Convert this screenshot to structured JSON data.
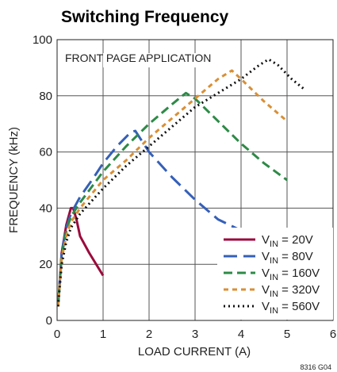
{
  "chart_data": {
    "type": "line",
    "title": "Switching Frequency",
    "xlabel": "LOAD CURRENT (A)",
    "ylabel": "FREQUENCY (kHz)",
    "annotation": "FRONT PAGE APPLICATION",
    "figure_id": "8316 G04",
    "xlim": [
      0,
      6
    ],
    "ylim": [
      0,
      100
    ],
    "xticks": [
      0,
      1,
      2,
      3,
      4,
      5,
      6
    ],
    "yticks": [
      0,
      20,
      40,
      60,
      80,
      100
    ],
    "grid": true,
    "legend_position": "bottom-right",
    "series": [
      {
        "name": "VIN = 20V",
        "label_main": "V",
        "label_sub": "IN",
        "label_value": " = 20V",
        "color": "#9b0a3c",
        "dash": "solid",
        "points": [
          [
            0.02,
            5
          ],
          [
            0.1,
            24
          ],
          [
            0.2,
            34
          ],
          [
            0.3,
            40
          ],
          [
            0.35,
            40
          ],
          [
            0.42,
            36
          ],
          [
            0.5,
            30
          ],
          [
            0.7,
            24
          ],
          [
            1.0,
            16
          ]
        ]
      },
      {
        "name": "VIN = 80V",
        "label_main": "V",
        "label_sub": "IN",
        "label_value": " = 80V",
        "color": "#3560b8",
        "dash": "long",
        "points": [
          [
            0.02,
            5
          ],
          [
            0.1,
            24
          ],
          [
            0.2,
            33
          ],
          [
            0.3,
            38
          ],
          [
            0.5,
            44
          ],
          [
            0.8,
            51
          ],
          [
            1.0,
            56
          ],
          [
            1.3,
            62
          ],
          [
            1.6,
            67
          ],
          [
            1.7,
            67.5
          ],
          [
            2.0,
            60
          ],
          [
            2.5,
            51
          ],
          [
            3.0,
            43
          ],
          [
            3.5,
            36
          ],
          [
            4.0,
            32
          ],
          [
            4.5,
            29
          ]
        ]
      },
      {
        "name": "VIN = 160V",
        "label_main": "V",
        "label_sub": "IN",
        "label_value": " = 160V",
        "color": "#2e8a47",
        "dash": "medium",
        "points": [
          [
            0.02,
            5
          ],
          [
            0.1,
            23
          ],
          [
            0.2,
            32
          ],
          [
            0.3,
            37
          ],
          [
            0.5,
            42
          ],
          [
            1.0,
            53
          ],
          [
            1.5,
            62
          ],
          [
            2.0,
            70
          ],
          [
            2.5,
            77
          ],
          [
            2.8,
            81
          ],
          [
            3.0,
            79
          ],
          [
            3.5,
            71
          ],
          [
            4.0,
            63
          ],
          [
            4.5,
            56
          ],
          [
            5.0,
            50
          ]
        ]
      },
      {
        "name": "VIN = 320V",
        "label_main": "V",
        "label_sub": "IN",
        "label_value": " = 320V",
        "color": "#d98f35",
        "dash": "short",
        "points": [
          [
            0.02,
            5
          ],
          [
            0.1,
            22
          ],
          [
            0.2,
            30
          ],
          [
            0.3,
            35
          ],
          [
            0.5,
            40
          ],
          [
            1.0,
            50
          ],
          [
            1.5,
            57
          ],
          [
            2.0,
            65
          ],
          [
            2.5,
            72
          ],
          [
            3.0,
            79
          ],
          [
            3.5,
            86
          ],
          [
            3.8,
            89
          ],
          [
            4.0,
            86
          ],
          [
            4.5,
            78
          ],
          [
            5.0,
            71
          ]
        ]
      },
      {
        "name": "VIN = 560V",
        "label_main": "V",
        "label_sub": "IN",
        "label_value": " = 560V",
        "color": "#111111",
        "dash": "dotted",
        "points": [
          [
            0.02,
            5
          ],
          [
            0.1,
            20
          ],
          [
            0.2,
            28
          ],
          [
            0.3,
            33
          ],
          [
            0.5,
            38
          ],
          [
            1.0,
            47
          ],
          [
            1.5,
            55
          ],
          [
            2.0,
            62
          ],
          [
            2.5,
            69
          ],
          [
            3.0,
            76
          ],
          [
            3.5,
            81
          ],
          [
            4.0,
            86
          ],
          [
            4.4,
            91
          ],
          [
            4.6,
            93
          ],
          [
            4.8,
            91
          ],
          [
            5.1,
            86
          ],
          [
            5.4,
            82
          ]
        ]
      }
    ]
  }
}
